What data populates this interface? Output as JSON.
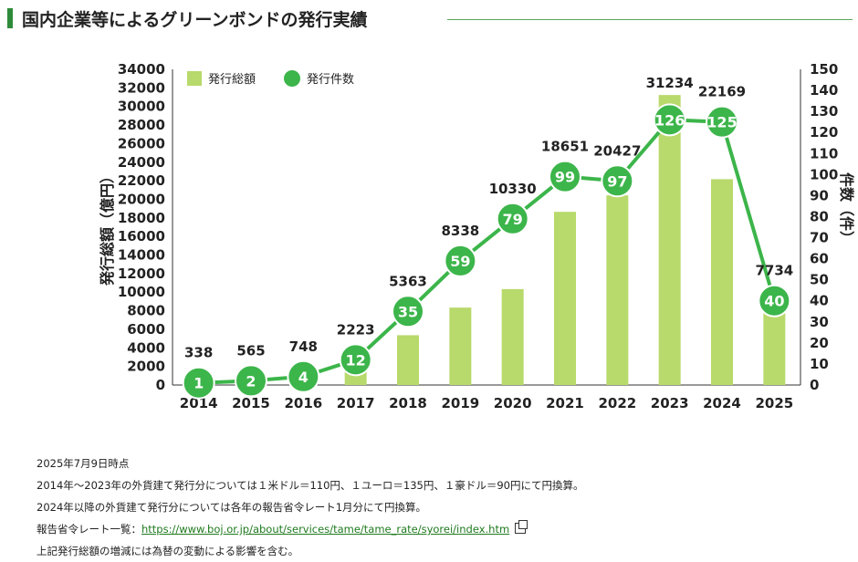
{
  "title": "国内企業等によるグリーンボンドの発行実績",
  "chart_data": {
    "type": "bar",
    "categories": [
      "2014",
      "2015",
      "2016",
      "2017",
      "2018",
      "2019",
      "2020",
      "2021",
      "2022",
      "2023",
      "2024",
      "2025"
    ],
    "series": [
      {
        "name": "発行総額",
        "type": "bar",
        "axis": "left",
        "values": [
          338,
          565,
          748,
          2223,
          5363,
          8338,
          10330,
          18651,
          20427,
          31234,
          22169,
          7734
        ],
        "color": "#b8d96b"
      },
      {
        "name": "発行件数",
        "type": "line",
        "axis": "right",
        "values": [
          1,
          2,
          4,
          12,
          35,
          59,
          79,
          99,
          97,
          126,
          125,
          40
        ],
        "color": "#3cb54a"
      }
    ],
    "ylabel": "発行総額（億円）",
    "y2label": "件数（件）",
    "ylim": [
      0,
      34000
    ],
    "y2lim": [
      0,
      150
    ],
    "yticks": [
      0,
      2000,
      4000,
      6000,
      8000,
      10000,
      12000,
      14000,
      16000,
      18000,
      20000,
      22000,
      24000,
      26000,
      28000,
      30000,
      32000,
      34000
    ],
    "y2ticks": [
      0,
      10,
      20,
      30,
      40,
      50,
      60,
      70,
      80,
      90,
      100,
      110,
      120,
      130,
      140,
      150
    ],
    "legend_position": "top-left",
    "grid": false
  },
  "notes": {
    "date": "2025年7月9日時点",
    "line1": "2014年～2023年の外貨建て発行分については１米ドル＝110円、１ユーロ＝135円、１豪ドル＝90円にて円換算。",
    "line2": "2024年以降の外貨建て発行分については各年の報告省令レート1月分にて円換算。",
    "line3_label": "報告省令レート一覧：",
    "line3_link": "https://www.boj.or.jp/about/services/tame/tame_rate/syorei/index.htm",
    "line4": "上記発行総額の増減には為替の変動による影響を含む。"
  }
}
